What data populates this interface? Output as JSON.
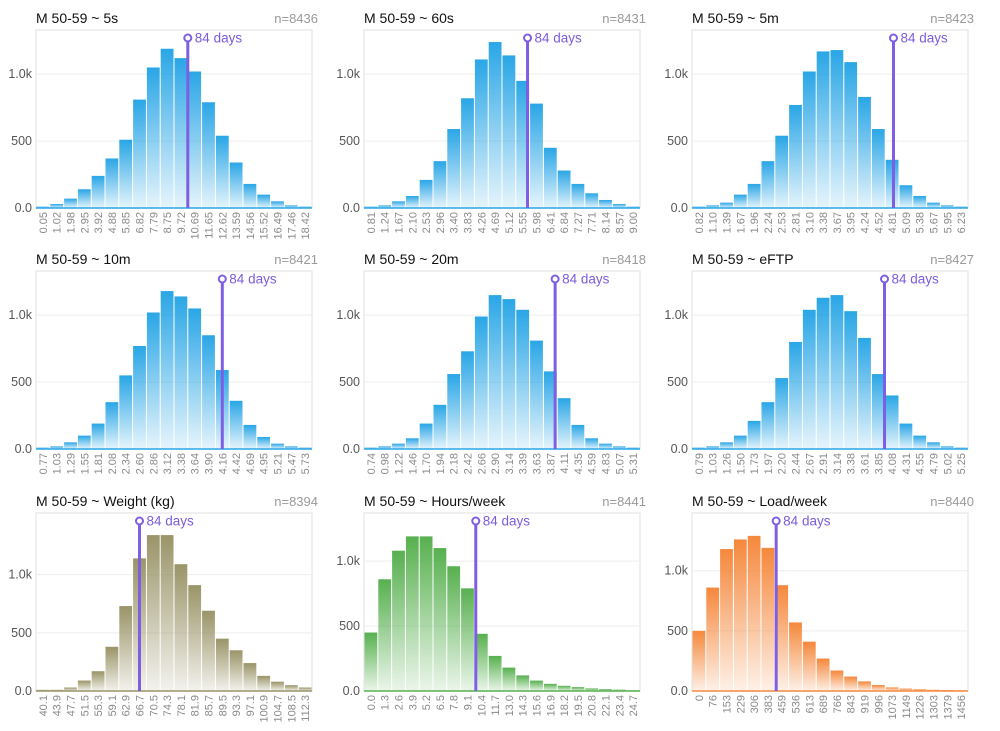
{
  "colors": {
    "blue": "#2aa6e6",
    "olive": "#9a9468",
    "green": "#57b04f",
    "orange": "#f5883c",
    "marker": "#7e5ee3"
  },
  "chart_data": [
    {
      "type": "bar",
      "title": "M 50-59 ~ 5s",
      "n": "n=8436",
      "color": "blue",
      "categories": [
        "0.05",
        "1.02",
        "1.98",
        "2.95",
        "3.92",
        "4.88",
        "5.85",
        "6.82",
        "7.79",
        "8.75",
        "9.72",
        "10.69",
        "11.65",
        "12.62",
        "13.59",
        "14.56",
        "15.52",
        "16.49",
        "17.46",
        "18.42"
      ],
      "values": [
        10,
        30,
        70,
        140,
        240,
        370,
        510,
        810,
        1050,
        1190,
        1120,
        1020,
        790,
        540,
        340,
        180,
        100,
        50,
        20,
        10
      ],
      "yticks": [
        0,
        500,
        1000
      ],
      "ytick_labels": [
        "0.0",
        "500",
        "1.0k"
      ],
      "ylim": [
        0,
        1330
      ],
      "marker": {
        "label": "84 days",
        "index": 11.0
      }
    },
    {
      "type": "bar",
      "title": "M 50-59 ~ 60s",
      "n": "n=8431",
      "color": "blue",
      "categories": [
        "0.81",
        "1.24",
        "1.67",
        "2.10",
        "2.53",
        "2.96",
        "3.40",
        "3.83",
        "4.26",
        "4.69",
        "5.12",
        "5.55",
        "5.98",
        "6.41",
        "6.84",
        "7.27",
        "7.71",
        "8.14",
        "8.57",
        "9.00"
      ],
      "values": [
        10,
        20,
        50,
        90,
        210,
        350,
        590,
        820,
        1110,
        1240,
        1140,
        950,
        780,
        450,
        280,
        180,
        110,
        60,
        30,
        10
      ],
      "yticks": [
        0,
        500,
        1000
      ],
      "ytick_labels": [
        "0.0",
        "500",
        "1.0k"
      ],
      "ylim": [
        0,
        1330
      ],
      "marker": {
        "label": "84 days",
        "index": 11.85
      }
    },
    {
      "type": "bar",
      "title": "M 50-59 ~ 5m",
      "n": "n=8423",
      "color": "blue",
      "categories": [
        "0.82",
        "1.10",
        "1.39",
        "1.67",
        "1.96",
        "2.24",
        "2.53",
        "2.81",
        "3.10",
        "3.38",
        "3.67",
        "3.95",
        "4.24",
        "4.52",
        "4.81",
        "5.09",
        "5.38",
        "5.67",
        "5.95",
        "6.23"
      ],
      "values": [
        10,
        20,
        40,
        100,
        180,
        350,
        540,
        770,
        1020,
        1170,
        1180,
        1090,
        830,
        590,
        360,
        170,
        90,
        40,
        20,
        10
      ],
      "yticks": [
        0,
        500,
        1000
      ],
      "ytick_labels": [
        "0.0",
        "500",
        "1.0k"
      ],
      "ylim": [
        0,
        1330
      ],
      "marker": {
        "label": "84 days",
        "index": 14.6
      }
    },
    {
      "type": "bar",
      "title": "M 50-59 ~ 10m",
      "n": "n=8421",
      "color": "blue",
      "categories": [
        "0.77",
        "1.03",
        "1.29",
        "1.55",
        "1.81",
        "2.08",
        "2.34",
        "2.60",
        "2.86",
        "3.12",
        "3.38",
        "3.64",
        "3.90",
        "4.16",
        "4.42",
        "4.69",
        "4.95",
        "5.21",
        "5.47",
        "5.73"
      ],
      "values": [
        10,
        20,
        50,
        100,
        190,
        350,
        550,
        770,
        1020,
        1180,
        1140,
        1050,
        850,
        590,
        360,
        180,
        90,
        40,
        20,
        10
      ],
      "yticks": [
        0,
        500,
        1000
      ],
      "ytick_labels": [
        "0.0",
        "500",
        "1.0k"
      ],
      "ylim": [
        0,
        1330
      ],
      "marker": {
        "label": "84 days",
        "index": 13.5
      }
    },
    {
      "type": "bar",
      "title": "M 50-59 ~ 20m",
      "n": "n=8418",
      "color": "blue",
      "categories": [
        "0.74",
        "0.98",
        "1.22",
        "1.46",
        "1.70",
        "1.94",
        "2.18",
        "2.42",
        "2.66",
        "2.90",
        "3.14",
        "3.39",
        "3.63",
        "3.87",
        "4.11",
        "4.35",
        "4.59",
        "4.83",
        "5.07",
        "5.31"
      ],
      "values": [
        10,
        20,
        40,
        80,
        190,
        330,
        560,
        730,
        990,
        1150,
        1120,
        1040,
        810,
        580,
        380,
        180,
        80,
        40,
        20,
        10
      ],
      "yticks": [
        0,
        500,
        1000
      ],
      "ytick_labels": [
        "0.0",
        "500",
        "1.0k"
      ],
      "ylim": [
        0,
        1330
      ],
      "marker": {
        "label": "84 days",
        "index": 13.85
      }
    },
    {
      "type": "bar",
      "title": "M 50-59 ~ eFTP",
      "n": "n=8427",
      "color": "blue",
      "categories": [
        "0.79",
        "1.03",
        "1.26",
        "1.50",
        "1.73",
        "1.97",
        "2.20",
        "2.44",
        "2.67",
        "2.91",
        "3.14",
        "3.38",
        "3.61",
        "3.85",
        "4.08",
        "4.31",
        "4.55",
        "4.79",
        "5.02",
        "5.25"
      ],
      "values": [
        10,
        20,
        50,
        100,
        210,
        350,
        530,
        800,
        1040,
        1130,
        1150,
        1030,
        830,
        560,
        400,
        190,
        100,
        50,
        20,
        10
      ],
      "yticks": [
        0,
        500,
        1000
      ],
      "ytick_labels": [
        "0.0",
        "500",
        "1.0k"
      ],
      "ylim": [
        0,
        1330
      ],
      "marker": {
        "label": "84 days",
        "index": 13.95
      }
    },
    {
      "type": "bar",
      "title": "M 50-59 ~ Weight (kg)",
      "n": "n=8394",
      "color": "olive",
      "categories": [
        "40.1",
        "43.9",
        "47.7",
        "51.5",
        "55.3",
        "59.1",
        "62.9",
        "66.7",
        "70.5",
        "74.3",
        "78.1",
        "81.9",
        "85.7",
        "89.5",
        "93.3",
        "97.1",
        "100.9",
        "104.7",
        "108.5",
        "112.3"
      ],
      "values": [
        10,
        10,
        30,
        90,
        170,
        380,
        730,
        1140,
        1340,
        1340,
        1090,
        910,
        690,
        450,
        350,
        240,
        130,
        80,
        50,
        30
      ],
      "yticks": [
        0,
        500,
        1000
      ],
      "ytick_labels": [
        "0.0",
        "500",
        "1.0k"
      ],
      "ylim": [
        0,
        1530
      ],
      "marker": {
        "label": "84 days",
        "index": 7.5
      }
    },
    {
      "type": "bar",
      "title": "M 50-59 ~ Hours/week",
      "n": "n=8441",
      "color": "green",
      "categories": [
        "0.0",
        "1.3",
        "2.6",
        "3.9",
        "5.2",
        "6.5",
        "7.8",
        "9.1",
        "10.4",
        "11.7",
        "13.0",
        "14.3",
        "15.6",
        "16.9",
        "18.2",
        "19.5",
        "20.8",
        "22.1",
        "23.4",
        "24.7"
      ],
      "values": [
        450,
        860,
        1080,
        1190,
        1190,
        1100,
        960,
        790,
        440,
        270,
        180,
        120,
        80,
        55,
        40,
        30,
        20,
        15,
        10,
        5
      ],
      "yticks": [
        0,
        500,
        1000
      ],
      "ytick_labels": [
        "0.0",
        "500",
        "1.0k"
      ],
      "ylim": [
        0,
        1370
      ],
      "marker": {
        "label": "84 days",
        "index": 8.1
      }
    },
    {
      "type": "bar",
      "title": "M 50-59 ~ Load/week",
      "n": "n=8440",
      "color": "orange",
      "categories": [
        "0",
        "76",
        "153",
        "229",
        "306",
        "383",
        "459",
        "536",
        "613",
        "689",
        "766",
        "843",
        "919",
        "996",
        "1073",
        "1149",
        "1226",
        "1303",
        "1379",
        "1456"
      ],
      "values": [
        500,
        860,
        1180,
        1260,
        1290,
        1190,
        880,
        570,
        410,
        270,
        170,
        120,
        80,
        50,
        30,
        20,
        15,
        10,
        8,
        5
      ],
      "yticks": [
        0,
        500,
        1000
      ],
      "ytick_labels": [
        "0.0",
        "500",
        "1.0k"
      ],
      "ylim": [
        0,
        1480
      ],
      "marker": {
        "label": "84 days",
        "index": 6.1
      }
    }
  ]
}
